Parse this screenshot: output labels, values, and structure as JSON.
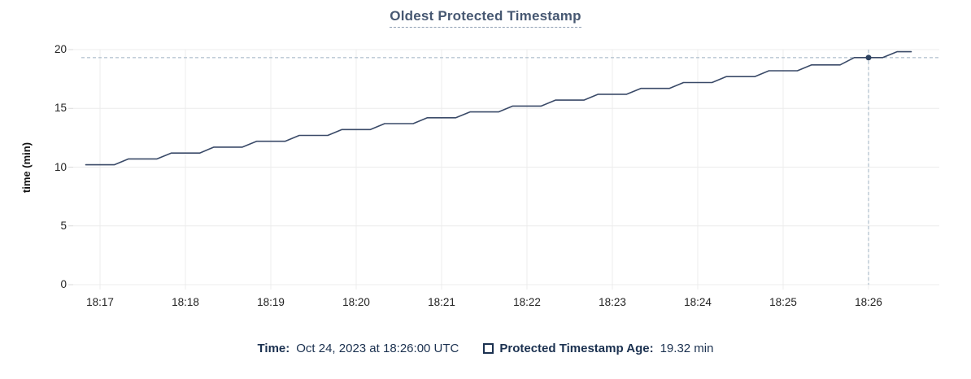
{
  "chart_data": {
    "type": "line",
    "title": "Oldest Protected Timestamp",
    "xlabel": "",
    "ylabel": "time (min)",
    "ylim": [
      0,
      20
    ],
    "y_ticks": [
      0,
      5,
      10,
      15,
      20
    ],
    "x_tick_labels": [
      "18:17",
      "18:18",
      "18:19",
      "18:20",
      "18:21",
      "18:22",
      "18:23",
      "18:24",
      "18:25",
      "18:26"
    ],
    "grid": true,
    "legend_position": "bottom",
    "series": [
      {
        "name": "Protected Timestamp Age",
        "x_offset_seconds_from": "18:17",
        "points": [
          [
            -10,
            10.2
          ],
          [
            0,
            10.2
          ],
          [
            10,
            10.2
          ],
          [
            20,
            10.7
          ],
          [
            30,
            10.7
          ],
          [
            40,
            10.7
          ],
          [
            50,
            11.2
          ],
          [
            60,
            11.2
          ],
          [
            70,
            11.2
          ],
          [
            80,
            11.7
          ],
          [
            90,
            11.7
          ],
          [
            100,
            11.7
          ],
          [
            110,
            12.2
          ],
          [
            120,
            12.2
          ],
          [
            130,
            12.2
          ],
          [
            140,
            12.7
          ],
          [
            150,
            12.7
          ],
          [
            160,
            12.7
          ],
          [
            170,
            13.2
          ],
          [
            180,
            13.2
          ],
          [
            190,
            13.2
          ],
          [
            200,
            13.7
          ],
          [
            210,
            13.7
          ],
          [
            220,
            13.7
          ],
          [
            230,
            14.2
          ],
          [
            240,
            14.2
          ],
          [
            250,
            14.2
          ],
          [
            260,
            14.7
          ],
          [
            270,
            14.7
          ],
          [
            280,
            14.7
          ],
          [
            290,
            15.2
          ],
          [
            300,
            15.2
          ],
          [
            310,
            15.2
          ],
          [
            320,
            15.7
          ],
          [
            330,
            15.7
          ],
          [
            340,
            15.7
          ],
          [
            350,
            16.2
          ],
          [
            360,
            16.2
          ],
          [
            370,
            16.2
          ],
          [
            380,
            16.7
          ],
          [
            390,
            16.7
          ],
          [
            400,
            16.7
          ],
          [
            410,
            17.2
          ],
          [
            420,
            17.2
          ],
          [
            430,
            17.2
          ],
          [
            440,
            17.7
          ],
          [
            450,
            17.7
          ],
          [
            460,
            17.7
          ],
          [
            470,
            18.2
          ],
          [
            480,
            18.2
          ],
          [
            490,
            18.2
          ],
          [
            500,
            18.7
          ],
          [
            510,
            18.7
          ],
          [
            520,
            18.7
          ],
          [
            530,
            19.32
          ],
          [
            540,
            19.32
          ],
          [
            550,
            19.32
          ],
          [
            560,
            19.82
          ],
          [
            570,
            19.82
          ]
        ]
      }
    ],
    "hover": {
      "time_tick": "18:26",
      "value_min": 19.32
    }
  },
  "tooltip": {
    "time_label": "Time:",
    "time_value": "Oct 24, 2023 at 18:26:00 UTC",
    "series_swatch": "checkbox-outline",
    "series_label": "Protected Timestamp Age:",
    "series_value": "19.32 min"
  },
  "colors": {
    "title_text": "#475872",
    "underline": "#90a0b4",
    "series_line": "#3a4a68",
    "hover_dot": "#2c4160",
    "crosshair": "#9db1c2",
    "gridline": "#ececec",
    "axis_tick": "#d9d9d9",
    "axis_tick_text": "#242424",
    "legend_text": "#1b3150"
  }
}
